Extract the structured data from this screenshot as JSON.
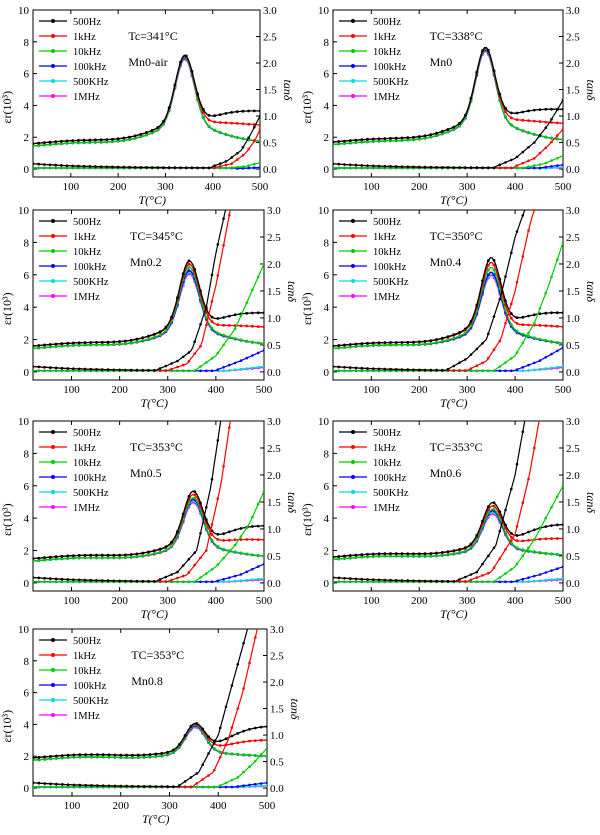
{
  "legend_labels": [
    "500Hz",
    "1kHz",
    "10kHz",
    "100kHz",
    "500KHz",
    "1MHz"
  ],
  "series_colors": [
    "#000000",
    "#ff0000",
    "#00cc00",
    "#0000ff",
    "#00dddd",
    "#ff00ff"
  ],
  "axis_titles": {
    "x": "T(°C)",
    "y_left": "ε_r(10^3)",
    "y_right": "tanδ"
  },
  "chart_data": [
    {
      "type": "line",
      "panel": "Mn0-air",
      "annotation": "Tc=341°C",
      "tc": 341,
      "xlabel": "T(°C)",
      "ylabel": "εr(10³)",
      "y2label": "tanδ",
      "xlim": [
        20,
        500
      ],
      "ylim": [
        -0.5,
        10
      ],
      "y2lim": [
        -0.15,
        3.0
      ],
      "xticks": [
        100,
        200,
        300,
        400,
        500
      ],
      "yticks": [
        0,
        2,
        4,
        6,
        8,
        10
      ],
      "y2ticks": [
        0.0,
        0.5,
        1.0,
        1.5,
        2.0,
        2.5,
        3.0
      ],
      "peak_eps": [
        7.3,
        7.25,
        7.2,
        7.15,
        7.1,
        7.05
      ],
      "base_eps": 1.5,
      "tan_rise": [
        {
          "x": [
            400,
            430,
            460,
            480,
            500
          ],
          "y": [
            0.05,
            0.15,
            0.35,
            0.65,
            1.0
          ]
        },
        {
          "x": [
            400,
            440,
            470,
            490,
            500
          ],
          "y": [
            0.02,
            0.1,
            0.3,
            0.55,
            0.75
          ]
        },
        {
          "x": [
            430,
            470,
            500
          ],
          "y": [
            0.02,
            0.05,
            0.12
          ]
        },
        {
          "x": [
            450,
            500
          ],
          "y": [
            0.01,
            0.03
          ]
        },
        {
          "x": [
            450,
            500
          ],
          "y": [
            0.01,
            0.02
          ]
        },
        {
          "x": [
            450,
            500
          ],
          "y": [
            0.01,
            0.02
          ]
        }
      ]
    },
    {
      "type": "line",
      "panel": "Mn0",
      "annotation": "TC=338°C",
      "tc": 338,
      "xlabel": "T(°C)",
      "ylabel": "εr(10³)",
      "y2label": "tanδ",
      "xlim": [
        20,
        500
      ],
      "ylim": [
        -0.5,
        10
      ],
      "y2lim": [
        -0.15,
        3.0
      ],
      "xticks": [
        100,
        200,
        300,
        400,
        500
      ],
      "yticks": [
        0,
        2,
        4,
        6,
        8,
        10
      ],
      "y2ticks": [
        0.0,
        0.5,
        1.0,
        1.5,
        2.0,
        2.5,
        3.0
      ],
      "peak_eps": [
        7.8,
        7.75,
        7.7,
        7.65,
        7.6,
        7.55
      ],
      "base_eps": 1.6,
      "tan_rise": [
        {
          "x": [
            360,
            400,
            440,
            470,
            500
          ],
          "y": [
            0.05,
            0.2,
            0.5,
            0.85,
            1.3
          ]
        },
        {
          "x": [
            400,
            440,
            470,
            500
          ],
          "y": [
            0.05,
            0.2,
            0.45,
            0.75
          ]
        },
        {
          "x": [
            420,
            460,
            500
          ],
          "y": [
            0.03,
            0.1,
            0.25
          ]
        },
        {
          "x": [
            450,
            500
          ],
          "y": [
            0.02,
            0.08
          ]
        },
        {
          "x": [
            450,
            500
          ],
          "y": [
            0.01,
            0.04
          ]
        },
        {
          "x": [
            450,
            500
          ],
          "y": [
            0.01,
            0.03
          ]
        }
      ]
    },
    {
      "type": "line",
      "panel": "Mn0.2",
      "annotation": "TC=345°C",
      "tc": 345,
      "xlabel": "T(°C)",
      "ylabel": "εr(10³)",
      "y2label": "tanδ",
      "xlim": [
        20,
        500
      ],
      "ylim": [
        -0.5,
        10
      ],
      "y2lim": [
        -0.15,
        3.0
      ],
      "xticks": [
        100,
        200,
        300,
        400,
        500
      ],
      "yticks": [
        0,
        2,
        4,
        6,
        8,
        10
      ],
      "y2ticks": [
        0.0,
        0.5,
        1.0,
        1.5,
        2.0,
        2.5,
        3.0
      ],
      "peak_eps": [
        7.0,
        6.8,
        6.6,
        6.4,
        6.3,
        6.2
      ],
      "base_eps": 1.5,
      "tan_rise": [
        {
          "x": [
            280,
            320,
            350,
            380,
            400,
            420
          ],
          "y": [
            0.05,
            0.2,
            0.4,
            1.2,
            2.2,
            3.0
          ]
        },
        {
          "x": [
            300,
            340,
            370,
            400,
            430
          ],
          "y": [
            0.03,
            0.15,
            0.5,
            1.6,
            3.0
          ]
        },
        {
          "x": [
            360,
            400,
            440,
            470,
            500
          ],
          "y": [
            0.05,
            0.3,
            0.8,
            1.4,
            2.0
          ]
        },
        {
          "x": [
            400,
            450,
            500
          ],
          "y": [
            0.03,
            0.2,
            0.4
          ]
        },
        {
          "x": [
            420,
            500
          ],
          "y": [
            0.02,
            0.1
          ]
        },
        {
          "x": [
            420,
            500
          ],
          "y": [
            0.02,
            0.08
          ]
        }
      ]
    },
    {
      "type": "line",
      "panel": "Mn0.4",
      "annotation": "TC=350°C",
      "tc": 350,
      "xlabel": "T(°C)",
      "ylabel": "εr(10³)",
      "y2label": "tanδ",
      "xlim": [
        20,
        500
      ],
      "ylim": [
        -0.5,
        10
      ],
      "y2lim": [
        -0.15,
        3.0
      ],
      "xticks": [
        100,
        200,
        300,
        400,
        500
      ],
      "yticks": [
        0,
        2,
        4,
        6,
        8,
        10
      ],
      "y2ticks": [
        0.0,
        0.5,
        1.0,
        1.5,
        2.0,
        2.5,
        3.0
      ],
      "peak_eps": [
        7.2,
        6.9,
        6.6,
        6.3,
        6.2,
        6.1
      ],
      "base_eps": 1.5,
      "tan_rise": [
        {
          "x": [
            260,
            300,
            340,
            370,
            400,
            420
          ],
          "y": [
            0.05,
            0.25,
            0.6,
            1.4,
            2.5,
            3.0
          ]
        },
        {
          "x": [
            300,
            340,
            370,
            400,
            430,
            440
          ],
          "y": [
            0.03,
            0.2,
            0.6,
            1.5,
            2.7,
            3.0
          ]
        },
        {
          "x": [
            360,
            400,
            440,
            470,
            500
          ],
          "y": [
            0.05,
            0.3,
            0.9,
            1.6,
            2.4
          ]
        },
        {
          "x": [
            400,
            450,
            500
          ],
          "y": [
            0.03,
            0.2,
            0.45
          ]
        },
        {
          "x": [
            420,
            500
          ],
          "y": [
            0.02,
            0.1
          ]
        },
        {
          "x": [
            420,
            500
          ],
          "y": [
            0.02,
            0.08
          ]
        }
      ]
    },
    {
      "type": "line",
      "panel": "Mn0.5",
      "annotation": "TC=353°C",
      "tc": 353,
      "xlabel": "T(°C)",
      "ylabel": "εr(10³)",
      "y2label": "tanδ",
      "xlim": [
        20,
        500
      ],
      "ylim": [
        -0.5,
        10
      ],
      "y2lim": [
        -0.15,
        3.0
      ],
      "xticks": [
        100,
        200,
        300,
        400,
        500
      ],
      "yticks": [
        0,
        2,
        4,
        6,
        8,
        10
      ],
      "y2ticks": [
        0.0,
        0.5,
        1.0,
        1.5,
        2.0,
        2.5,
        3.0
      ],
      "peak_eps": [
        5.8,
        5.6,
        5.4,
        5.3,
        5.2,
        5.1
      ],
      "base_eps": 1.4,
      "tan_rise": [
        {
          "x": [
            280,
            320,
            360,
            390,
            410
          ],
          "y": [
            0.05,
            0.2,
            0.6,
            1.8,
            3.0
          ]
        },
        {
          "x": [
            300,
            340,
            380,
            410,
            430
          ],
          "y": [
            0.03,
            0.15,
            0.6,
            1.8,
            3.0
          ]
        },
        {
          "x": [
            360,
            400,
            440,
            470,
            500
          ],
          "y": [
            0.05,
            0.3,
            0.7,
            1.1,
            1.7
          ]
        },
        {
          "x": [
            400,
            450,
            500
          ],
          "y": [
            0.03,
            0.15,
            0.35
          ]
        },
        {
          "x": [
            420,
            500
          ],
          "y": [
            0.02,
            0.08
          ]
        },
        {
          "x": [
            420,
            500
          ],
          "y": [
            0.02,
            0.06
          ]
        }
      ]
    },
    {
      "type": "line",
      "panel": "Mn0.6",
      "annotation": "TC=353°C",
      "tc": 353,
      "xlabel": "T(°C)",
      "ylabel": "εr(10³)",
      "y2label": "tanδ",
      "xlim": [
        20,
        500
      ],
      "ylim": [
        -0.5,
        10
      ],
      "y2lim": [
        -0.15,
        3.0
      ],
      "xticks": [
        100,
        200,
        300,
        400,
        500
      ],
      "yticks": [
        0,
        2,
        4,
        6,
        8,
        10
      ],
      "y2ticks": [
        0.0,
        0.5,
        1.0,
        1.5,
        2.0,
        2.5,
        3.0
      ],
      "peak_eps": [
        5.1,
        4.9,
        4.7,
        4.6,
        4.5,
        4.4
      ],
      "base_eps": 1.5,
      "tan_rise": [
        {
          "x": [
            280,
            320,
            360,
            400,
            420
          ],
          "y": [
            0.05,
            0.2,
            0.7,
            2.0,
            3.0
          ]
        },
        {
          "x": [
            300,
            350,
            400,
            430,
            450
          ],
          "y": [
            0.03,
            0.2,
            0.9,
            2.0,
            3.0
          ]
        },
        {
          "x": [
            360,
            400,
            440,
            470,
            500
          ],
          "y": [
            0.05,
            0.3,
            0.8,
            1.3,
            1.8
          ]
        },
        {
          "x": [
            400,
            450,
            500
          ],
          "y": [
            0.03,
            0.15,
            0.3
          ]
        },
        {
          "x": [
            420,
            500
          ],
          "y": [
            0.02,
            0.08
          ]
        },
        {
          "x": [
            420,
            500
          ],
          "y": [
            0.02,
            0.06
          ]
        }
      ]
    },
    {
      "type": "line",
      "panel": "Mn0.8",
      "annotation": "TC=353°C",
      "tc": 353,
      "xlabel": "T(°C)",
      "ylabel": "εr(10³)",
      "y2label": "tanδ",
      "xlim": [
        20,
        500
      ],
      "ylim": [
        -0.5,
        10
      ],
      "y2lim": [
        -0.15,
        3.0
      ],
      "xticks": [
        100,
        200,
        300,
        400,
        500
      ],
      "yticks": [
        0,
        2,
        4,
        6,
        8,
        10
      ],
      "y2ticks": [
        0.0,
        0.5,
        1.0,
        1.5,
        2.0,
        2.5,
        3.0
      ],
      "peak_eps": [
        4.2,
        4.15,
        4.1,
        4.05,
        4.0,
        3.95
      ],
      "base_eps": 1.8,
      "tan_rise": [
        {
          "x": [
            320,
            360,
            400,
            430,
            460
          ],
          "y": [
            0.05,
            0.3,
            1.0,
            2.0,
            3.0
          ]
        },
        {
          "x": [
            350,
            390,
            420,
            450,
            480
          ],
          "y": [
            0.05,
            0.3,
            0.9,
            1.8,
            3.0
          ]
        },
        {
          "x": [
            400,
            440,
            470,
            500
          ],
          "y": [
            0.03,
            0.2,
            0.45,
            0.75
          ]
        },
        {
          "x": [
            430,
            500
          ],
          "y": [
            0.02,
            0.1
          ]
        },
        {
          "x": [
            430,
            500
          ],
          "y": [
            0.01,
            0.05
          ]
        },
        {
          "x": [
            430,
            500
          ],
          "y": [
            0.01,
            0.04
          ]
        }
      ]
    }
  ]
}
